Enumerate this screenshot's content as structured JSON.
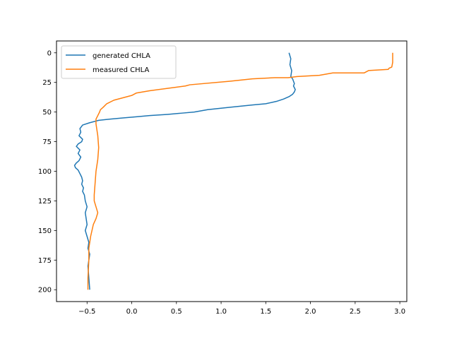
{
  "chart_data": {
    "type": "line",
    "title": "",
    "xlabel": "",
    "ylabel": "",
    "xlim": [
      -0.842,
      3.078
    ],
    "ylim": [
      210,
      -10
    ],
    "y_inverted": true,
    "grid": false,
    "legend_placement": "upper-left",
    "xticks": [
      -0.5,
      0.0,
      0.5,
      1.0,
      1.5,
      2.0,
      2.5,
      3.0
    ],
    "xtick_labels": [
      "−0.5",
      "0.0",
      "0.5",
      "1.0",
      "1.5",
      "2.0",
      "2.5",
      "3.0"
    ],
    "yticks": [
      0,
      25,
      50,
      75,
      100,
      125,
      150,
      175,
      200
    ],
    "ytick_labels": [
      "0",
      "25",
      "50",
      "75",
      "100",
      "125",
      "150",
      "175",
      "200"
    ],
    "series": [
      {
        "name": "generated CHLA",
        "color": "#1f77b4",
        "x": [
          1.76,
          1.78,
          1.77,
          1.79,
          1.78,
          1.8,
          1.81,
          1.82,
          1.81,
          1.83,
          1.82,
          1.8,
          1.76,
          1.7,
          1.62,
          1.5,
          1.35,
          1.1,
          0.85,
          0.7,
          0.55,
          0.4,
          0.2,
          0.05,
          -0.1,
          -0.25,
          -0.37,
          -0.47,
          -0.55,
          -0.58,
          -0.57,
          -0.59,
          -0.55,
          -0.56,
          -0.6,
          -0.62,
          -0.58,
          -0.6,
          -0.57,
          -0.59,
          -0.62,
          -0.64,
          -0.63,
          -0.6,
          -0.58,
          -0.56,
          -0.55,
          -0.56,
          -0.54,
          -0.55,
          -0.53,
          -0.52,
          -0.5,
          -0.52,
          -0.51,
          -0.5,
          -0.52,
          -0.5,
          -0.48,
          -0.49,
          -0.47,
          -0.49,
          -0.48,
          -0.47
        ],
        "y": [
          0,
          5,
          10,
          15,
          20,
          22,
          24,
          26,
          28,
          31,
          33,
          35,
          37,
          39,
          41,
          43,
          44,
          46,
          48,
          50,
          51,
          52,
          53,
          54,
          55,
          56,
          57,
          59,
          61,
          64,
          67,
          70,
          73,
          75,
          77,
          79,
          82,
          85,
          88,
          91,
          93,
          95,
          97,
          99,
          102,
          105,
          108,
          111,
          114,
          117,
          120,
          125,
          130,
          135,
          140,
          145,
          150,
          155,
          160,
          165,
          170,
          180,
          190,
          200
        ]
      },
      {
        "name": "measured CHLA",
        "color": "#ff7f0e",
        "x": [
          2.92,
          2.92,
          2.91,
          2.88,
          2.87,
          2.65,
          2.6,
          2.25,
          2.1,
          1.85,
          1.75,
          1.6,
          1.35,
          1.1,
          0.65,
          0.6,
          0.4,
          0.2,
          0.05,
          0.0,
          -0.1,
          -0.2,
          -0.28,
          -0.32,
          -0.35,
          -0.36,
          -0.38,
          -0.4,
          -0.4,
          -0.39,
          -0.38,
          -0.37,
          -0.38,
          -0.4,
          -0.41,
          -0.42,
          -0.42,
          -0.4,
          -0.38,
          -0.4,
          -0.43,
          -0.46,
          -0.48,
          -0.48,
          -0.49,
          -0.49
        ],
        "y": [
          0,
          8,
          12,
          13,
          14,
          15,
          17,
          17,
          19,
          20,
          21,
          21,
          22,
          24,
          27,
          28,
          30,
          32,
          34,
          36,
          38,
          40,
          43,
          46,
          48,
          50,
          53,
          56,
          60,
          65,
          70,
          80,
          90,
          100,
          110,
          120,
          125,
          130,
          135,
          140,
          145,
          155,
          165,
          175,
          190,
          200
        ]
      }
    ]
  }
}
